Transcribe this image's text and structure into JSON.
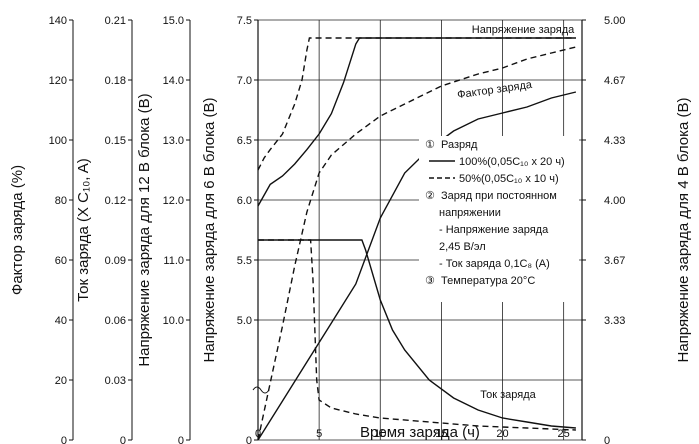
{
  "chart_data": {
    "type": "line",
    "x": {
      "label": "Время заряда (ч)",
      "ticks": [
        0,
        5,
        10,
        15,
        20,
        25
      ],
      "range": [
        0,
        26.5
      ]
    },
    "axes": {
      "factor": {
        "label": "Фактор заряда (%)",
        "ticks": [
          0,
          20,
          40,
          60,
          80,
          100,
          120,
          140
        ],
        "tick_labels": [
          "0",
          "20",
          "40",
          "60",
          "80",
          "100",
          "120",
          "140"
        ]
      },
      "current": {
        "label": "Ток заряда (X C₁₀, A)",
        "ticks": [
          0,
          0.03,
          0.06,
          0.09,
          0.12,
          0.15,
          0.18,
          0.21
        ],
        "tick_labels": [
          "0",
          "0.03",
          "0.06",
          "0.09",
          "0.12",
          "0.15",
          "0.18",
          "0.21"
        ]
      },
      "v12": {
        "label": "Напряжение заряда для 12 В блока (В)",
        "tick_labels": [
          "0",
          "10.0",
          "11.0",
          "12.0",
          "13.0",
          "14.0",
          "15.0"
        ]
      },
      "v6": {
        "label": "Напряжение заряда для 6 В блока (В)",
        "tick_labels": [
          "0",
          "5.0",
          "5.5",
          "6.0",
          "6.5",
          "7.0",
          "7.5"
        ]
      },
      "v4": {
        "label": "Напряжение заряда для 4 В блока (В)",
        "tick_labels": [
          "0",
          "3.33",
          "3.67",
          "4.00",
          "4.33",
          "4.67",
          "5.00"
        ]
      }
    },
    "curve_labels": {
      "voltage": "Напряжение заряда",
      "factor": "Фактор заряда",
      "current": "Ток заряда"
    },
    "series": [
      {
        "name": "100%(0,05C₁₀ x 20 ч)",
        "quantity": "voltage_6V",
        "style": "solid",
        "x": [
          0,
          1,
          2,
          3,
          4,
          5,
          6,
          7,
          8,
          8.3,
          26
        ],
        "y": [
          5.95,
          6.13,
          6.2,
          6.3,
          6.42,
          6.55,
          6.72,
          6.98,
          7.3,
          7.35,
          7.35
        ]
      },
      {
        "name": "50%(0,05C₁₀ x 10 ч)",
        "quantity": "voltage_6V",
        "style": "dashed",
        "x": [
          0,
          0.5,
          1,
          2,
          3,
          3.6,
          4,
          4.2,
          26
        ],
        "y": [
          6.25,
          6.35,
          6.42,
          6.55,
          6.8,
          7.0,
          7.25,
          7.35,
          7.35
        ]
      },
      {
        "name": "100%(0,05C₁₀ x 20 ч)",
        "quantity": "factor",
        "style": "solid",
        "x": [
          0,
          2,
          4,
          6,
          8,
          10,
          12,
          14,
          16,
          18,
          20,
          22,
          24,
          26
        ],
        "y": [
          0,
          13,
          26,
          39,
          52,
          74,
          89,
          97,
          103,
          107,
          109,
          111,
          114,
          116
        ]
      },
      {
        "name": "50%(0,05C₁₀ x 10 ч)",
        "quantity": "factor",
        "style": "dashed",
        "x": [
          0,
          1,
          2,
          3,
          4,
          5,
          6,
          8,
          10,
          12,
          15,
          18,
          20,
          22,
          24,
          26
        ],
        "y": [
          0,
          19,
          38,
          58,
          76,
          89,
          95,
          102,
          108,
          112,
          118,
          122,
          124,
          127,
          129,
          131
        ]
      },
      {
        "name": "100%(0,05C₁₀ x 20 ч)",
        "quantity": "current",
        "style": "solid",
        "x": [
          0,
          8.5,
          8.8,
          10,
          11,
          12,
          14,
          16,
          18,
          20,
          22,
          24,
          26
        ],
        "y": [
          0.1,
          0.1,
          0.095,
          0.07,
          0.055,
          0.045,
          0.03,
          0.021,
          0.015,
          0.011,
          0.009,
          0.007,
          0.006
        ]
      },
      {
        "name": "50%(0,05C₁₀ x 10 ч)",
        "quantity": "current",
        "style": "dashed",
        "x": [
          0,
          4.3,
          4.5,
          4.8,
          5,
          6,
          8,
          10,
          14,
          18,
          22,
          26
        ],
        "y": [
          0.1,
          0.1,
          0.08,
          0.03,
          0.02,
          0.016,
          0.013,
          0.011,
          0.009,
          0.007,
          0.006,
          0.005
        ]
      }
    ],
    "legend": {
      "items": [
        {
          "num": "①",
          "text": "Разряд"
        },
        {
          "line": "solid",
          "text": "100%(0,05C₁₀ x 20 ч)"
        },
        {
          "line": "dashed",
          "text": "50%(0,05C₁₀ x 10 ч)"
        },
        {
          "num": "②",
          "text": "Заряд при постоянном"
        },
        {
          "text": "напряжении"
        },
        {
          "text": "- Напряжение заряда"
        },
        {
          "text": "2,45 В/эл"
        },
        {
          "text": "- Ток заряда 0,1C₈ (A)"
        },
        {
          "num": "③",
          "text": "Температура 20°С"
        }
      ]
    },
    "grid": true
  }
}
